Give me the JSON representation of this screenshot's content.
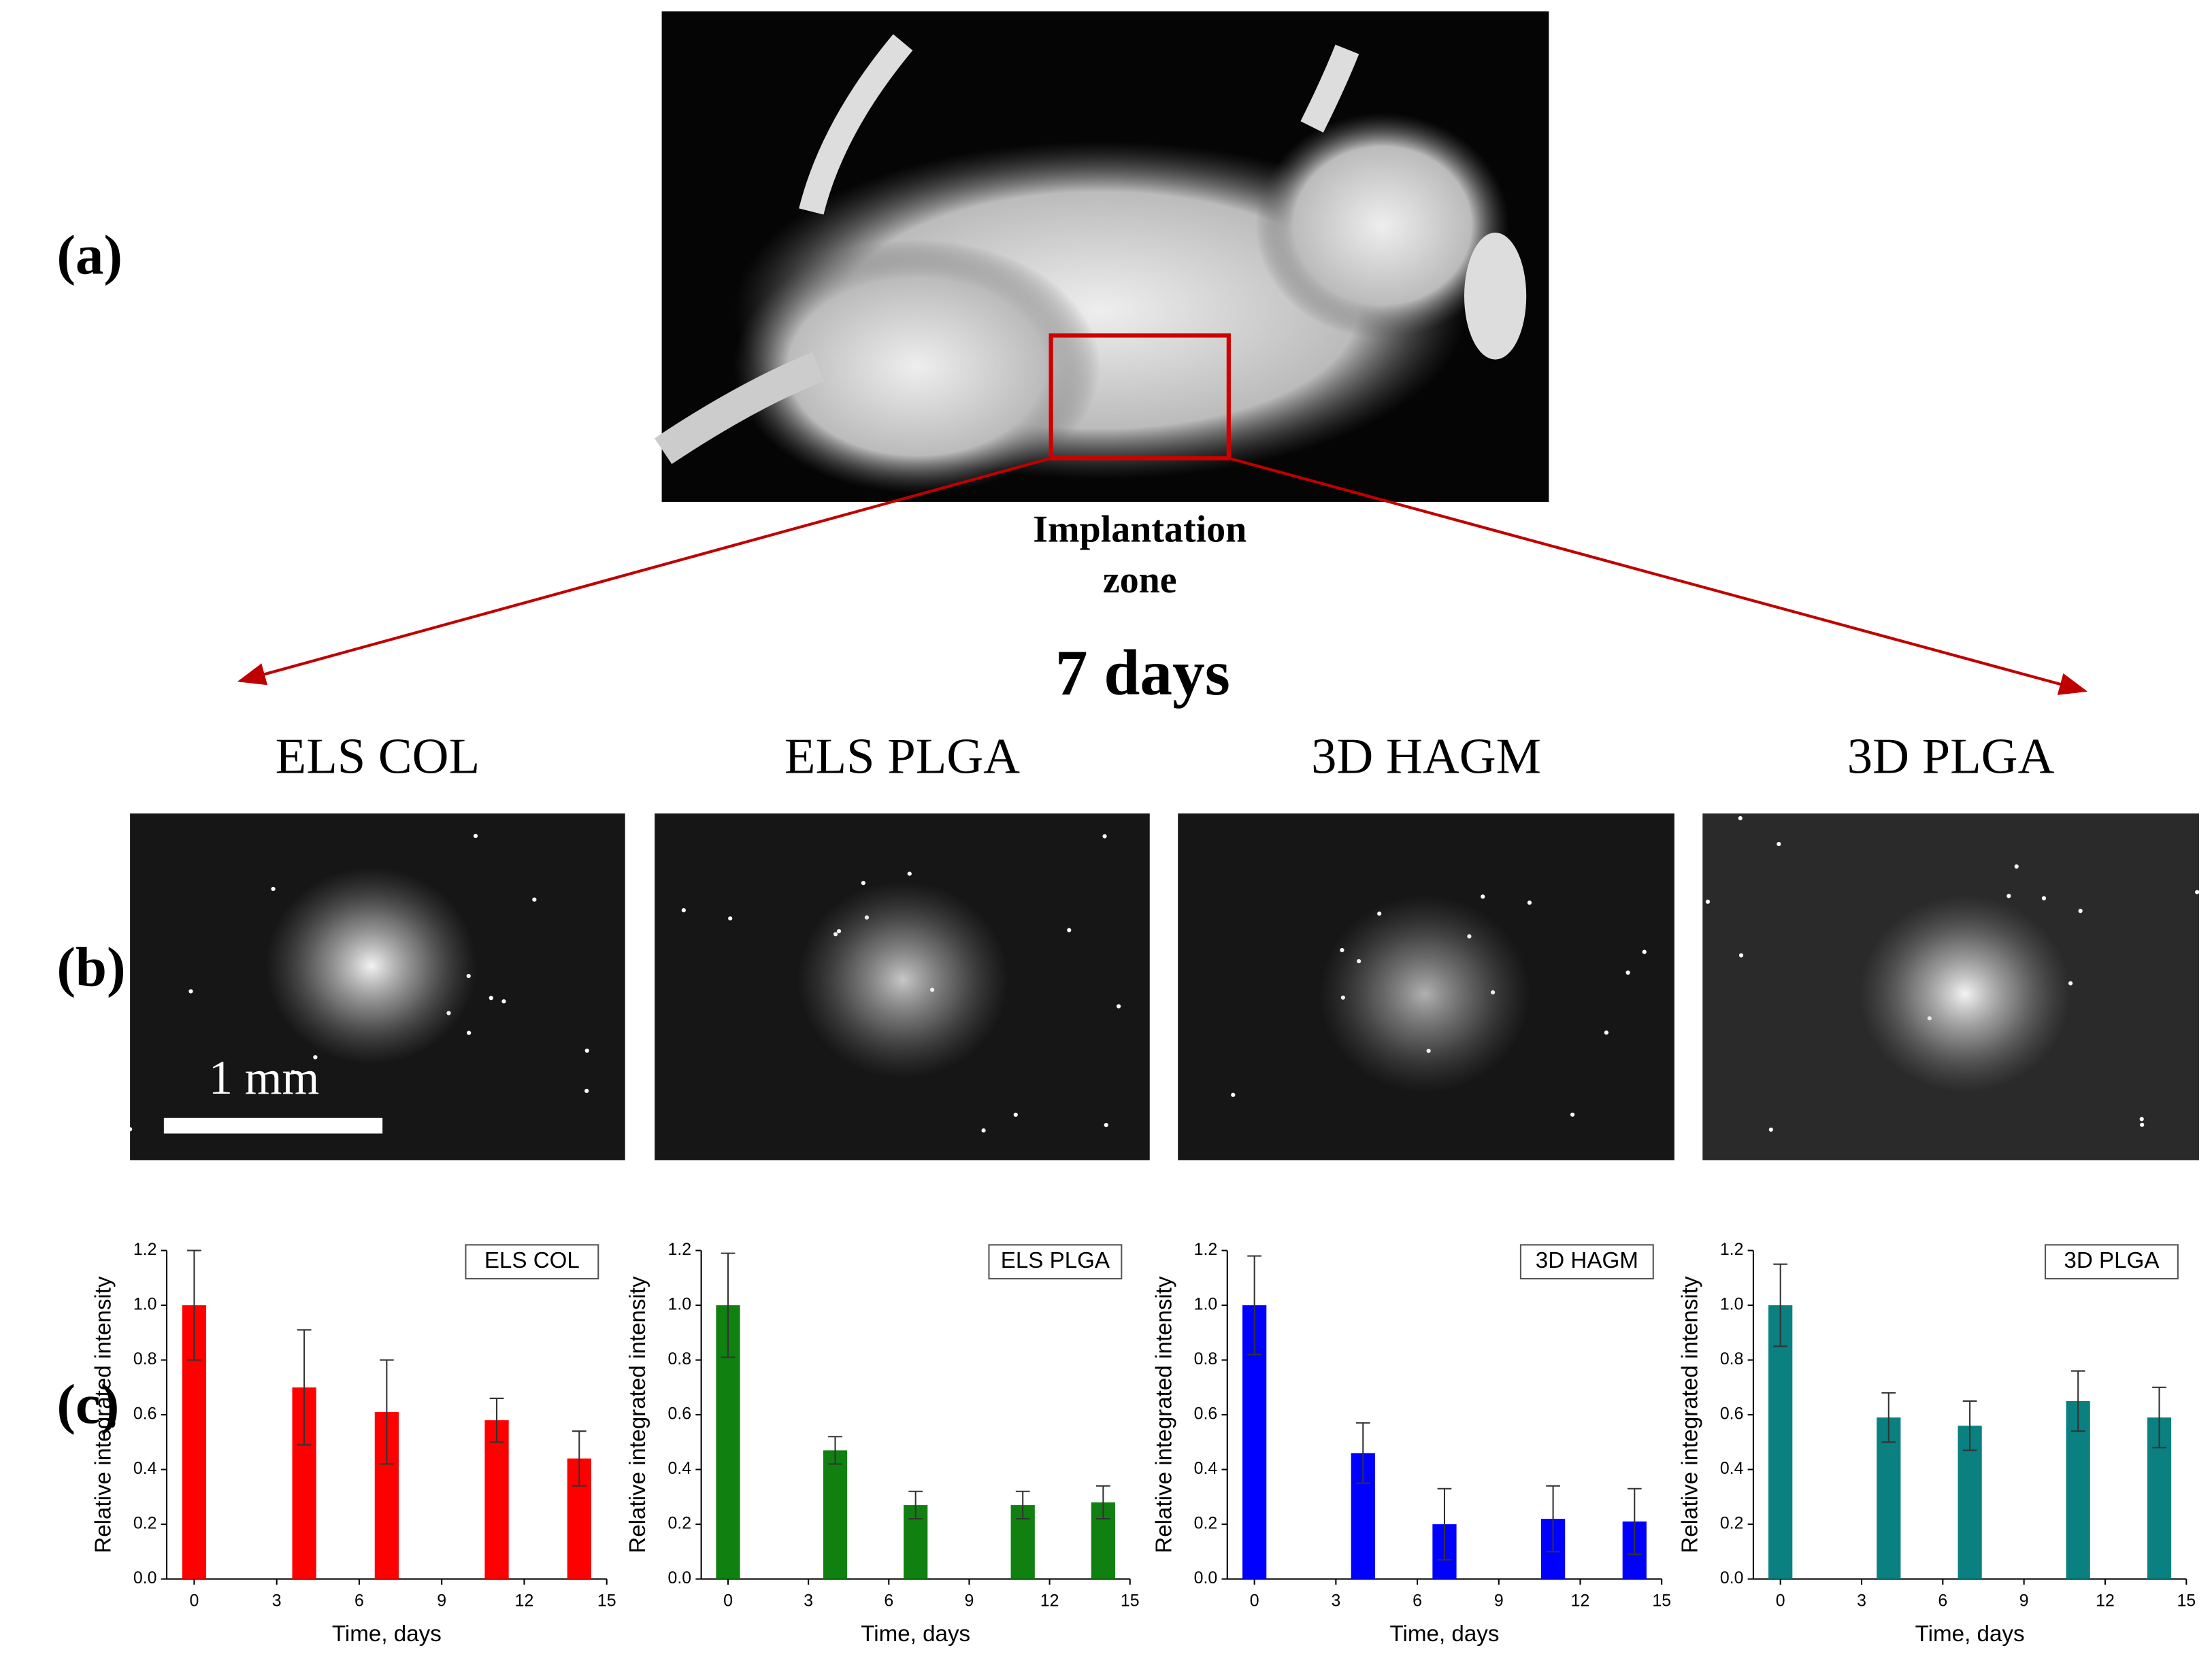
{
  "panel_labels": [
    "(a)",
    "(b)",
    "(c)"
  ],
  "annotations": {
    "implantation_zone": [
      "Implantation",
      "zone"
    ],
    "time_point": "7 days",
    "scale_bar": "1 mm"
  },
  "image_titles": [
    "ELS COL",
    "ELS PLGA",
    "3D HAGM",
    "3D PLGA"
  ],
  "chart_data": [
    {
      "type": "bar",
      "xlabel": "Time, days",
      "ylabel": "Relative integrated intensity",
      "x": [
        0,
        4,
        7,
        11,
        14
      ],
      "series": [
        {
          "name": "ELS COL",
          "color": "#ff0000",
          "values": [
            1.0,
            0.7,
            0.61,
            0.58,
            0.44
          ],
          "errors": [
            0.2,
            0.21,
            0.19,
            0.08,
            0.1
          ]
        }
      ],
      "xlim": [
        -1,
        15
      ],
      "xticks": [
        0,
        3,
        6,
        9,
        12,
        15
      ],
      "ylim": [
        0,
        1.2
      ],
      "yticks": [
        {
          "value": 0,
          "label": "0.0"
        },
        0.2,
        0.4,
        0.6,
        0.8,
        {
          "value": 1,
          "label": "1.0"
        },
        1.2
      ]
    },
    {
      "type": "bar",
      "xlabel": "Time, days",
      "ylabel": "Relative integrated intensity",
      "x": [
        0,
        4,
        7,
        11,
        14
      ],
      "series": [
        {
          "name": "ELS PLGA",
          "color": "#108010",
          "values": [
            1.0,
            0.47,
            0.27,
            0.27,
            0.28
          ],
          "errors": [
            0.19,
            0.05,
            0.05,
            0.05,
            0.06
          ]
        }
      ],
      "xlim": [
        -1,
        15
      ],
      "xticks": [
        0,
        3,
        6,
        9,
        12,
        15
      ],
      "ylim": [
        0,
        1.2
      ],
      "yticks": [
        {
          "value": 0,
          "label": "0.0"
        },
        0.2,
        0.4,
        0.6,
        0.8,
        {
          "value": 1,
          "label": "1.0"
        },
        1.2
      ]
    },
    {
      "type": "bar",
      "xlabel": "Time, days",
      "ylabel": "Relative integrated intensity",
      "x": [
        0,
        4,
        7,
        11,
        14
      ],
      "series": [
        {
          "name": "3D HAGM",
          "color": "#0000ff",
          "values": [
            1.0,
            0.46,
            0.2,
            0.22,
            0.21
          ],
          "errors": [
            0.18,
            0.11,
            0.13,
            0.12,
            0.12
          ]
        }
      ],
      "xlim": [
        -1,
        15
      ],
      "xticks": [
        0,
        3,
        6,
        9,
        12,
        15
      ],
      "ylim": [
        0,
        1.2
      ],
      "yticks": [
        {
          "value": 0,
          "label": "0.0"
        },
        0.2,
        0.4,
        0.6,
        0.8,
        {
          "value": 1,
          "label": "1.0"
        },
        1.2
      ]
    },
    {
      "type": "bar",
      "xlabel": "Time, days",
      "ylabel": "Relative integrated intensity",
      "x": [
        0,
        4,
        7,
        11,
        14
      ],
      "series": [
        {
          "name": "3D PLGA",
          "color": "#0a8080",
          "values": [
            1.0,
            0.59,
            0.56,
            0.65,
            0.59
          ],
          "errors": [
            0.15,
            0.09,
            0.09,
            0.11,
            0.11
          ]
        }
      ],
      "xlim": [
        -1,
        15
      ],
      "xticks": [
        0,
        3,
        6,
        9,
        12,
        15
      ],
      "ylim": [
        0,
        1.2
      ],
      "yticks": [
        {
          "value": 0,
          "label": "0.0"
        },
        0.2,
        0.4,
        0.6,
        0.8,
        {
          "value": 1,
          "label": "1.0"
        },
        1.2
      ]
    }
  ]
}
